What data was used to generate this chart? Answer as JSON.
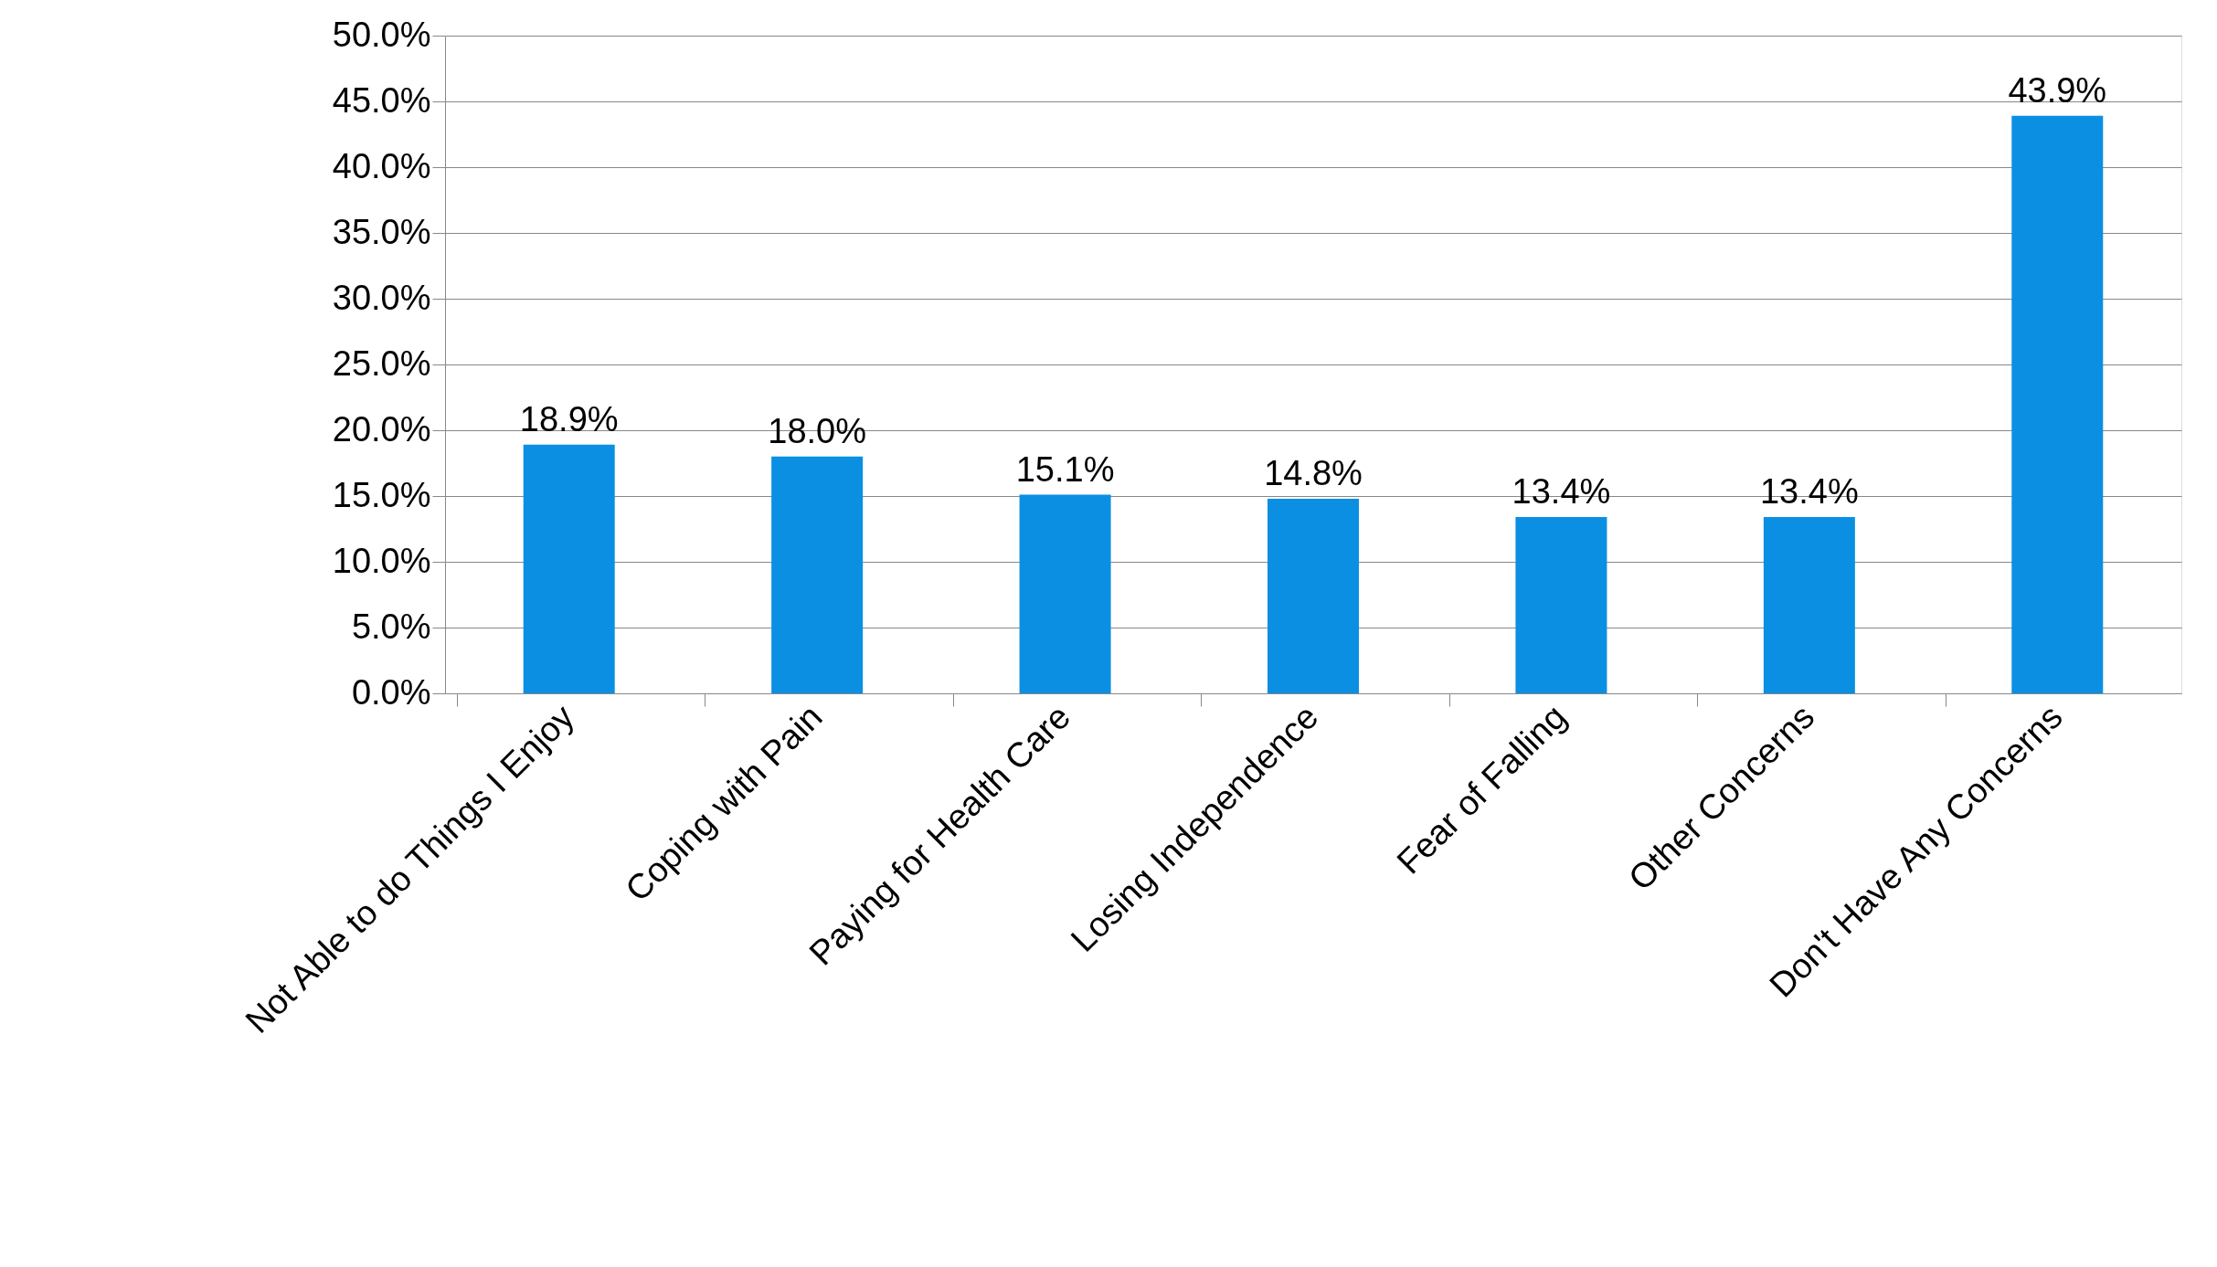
{
  "chart_data": {
    "type": "bar",
    "categories": [
      "Not Able to do Things I Enjoy",
      "Coping with Pain",
      "Paying for Health Care",
      "Losing Independence",
      "Fear of Falling",
      "Other Concerns",
      "Don't Have Any Concerns"
    ],
    "values": [
      18.9,
      18.0,
      15.1,
      14.8,
      13.4,
      13.4,
      43.9
    ],
    "value_labels": [
      "18.9%",
      "18.0%",
      "15.1%",
      "14.8%",
      "13.4%",
      "13.4%",
      "43.9%"
    ],
    "color": "#0a8fe3",
    "ylim": [
      0,
      50
    ],
    "yticks": [
      {
        "value": 0,
        "label": "0.0%"
      },
      {
        "value": 5,
        "label": "5.0%"
      },
      {
        "value": 10,
        "label": "10.0%"
      },
      {
        "value": 15,
        "label": "15.0%"
      },
      {
        "value": 20,
        "label": "20.0%"
      },
      {
        "value": 25,
        "label": "25.0%"
      },
      {
        "value": 30,
        "label": "30.0%"
      },
      {
        "value": 35,
        "label": "35.0%"
      },
      {
        "value": 40,
        "label": "40.0%"
      },
      {
        "value": 45,
        "label": "45.0%"
      },
      {
        "value": 50,
        "label": "50.0%"
      }
    ],
    "grid": "y"
  }
}
